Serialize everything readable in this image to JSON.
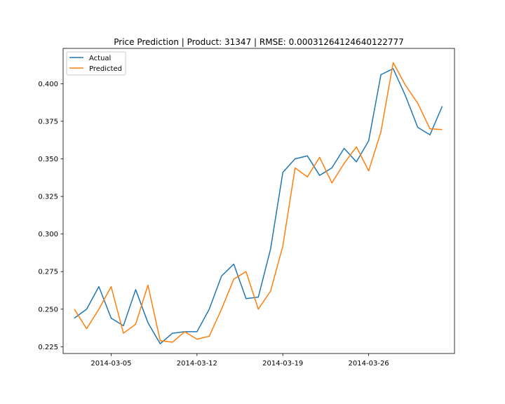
{
  "chart_data": {
    "type": "line",
    "title": "Price Prediction | Product: 31347 | RMSE: 0.00031264124640122777",
    "xlabel": "",
    "ylabel": "",
    "x_start": "2014-03-02",
    "x": [
      "2014-03-02",
      "2014-03-03",
      "2014-03-04",
      "2014-03-05",
      "2014-03-06",
      "2014-03-07",
      "2014-03-08",
      "2014-03-09",
      "2014-03-10",
      "2014-03-11",
      "2014-03-12",
      "2014-03-13",
      "2014-03-14",
      "2014-03-15",
      "2014-03-16",
      "2014-03-17",
      "2014-03-18",
      "2014-03-19",
      "2014-03-20",
      "2014-03-21",
      "2014-03-22",
      "2014-03-23",
      "2014-03-24",
      "2014-03-25",
      "2014-03-26",
      "2014-03-27",
      "2014-03-28",
      "2014-03-29",
      "2014-03-30",
      "2014-03-31",
      "2014-04-01"
    ],
    "xlim": [
      "2014-03-01T02:00",
      "2014-04-02T00:00"
    ],
    "ylim": [
      0.2205,
      0.4235
    ],
    "x_ticks": [
      "2014-03-05",
      "2014-03-12",
      "2014-03-19",
      "2014-03-26"
    ],
    "y_ticks": [
      0.225,
      0.25,
      0.275,
      0.3,
      0.325,
      0.35,
      0.375,
      0.4
    ],
    "y_tick_labels": [
      "0.225",
      "0.250",
      "0.275",
      "0.300",
      "0.325",
      "0.350",
      "0.375",
      "0.400"
    ],
    "legend_position": "top-left",
    "grid": false,
    "series": [
      {
        "name": "Actual",
        "color": "#1f77b4",
        "values": [
          0.244,
          0.25,
          0.265,
          0.244,
          0.239,
          0.263,
          0.241,
          0.227,
          0.234,
          0.235,
          0.235,
          0.25,
          0.272,
          0.28,
          0.257,
          0.258,
          0.29,
          0.341,
          0.35,
          0.352,
          0.339,
          0.344,
          0.357,
          0.348,
          0.362,
          0.406,
          0.41,
          0.392,
          0.371,
          0.366,
          0.385
        ]
      },
      {
        "name": "Predicted",
        "color": "#ff7f0e",
        "values": [
          0.25,
          0.237,
          0.25,
          0.265,
          0.234,
          0.24,
          0.266,
          0.229,
          0.228,
          0.235,
          0.23,
          0.232,
          0.25,
          0.27,
          0.275,
          0.25,
          0.262,
          0.292,
          0.344,
          0.338,
          0.351,
          0.334,
          0.347,
          0.358,
          0.342,
          0.368,
          0.414,
          0.399,
          0.387,
          0.37,
          0.3695
        ]
      }
    ]
  }
}
